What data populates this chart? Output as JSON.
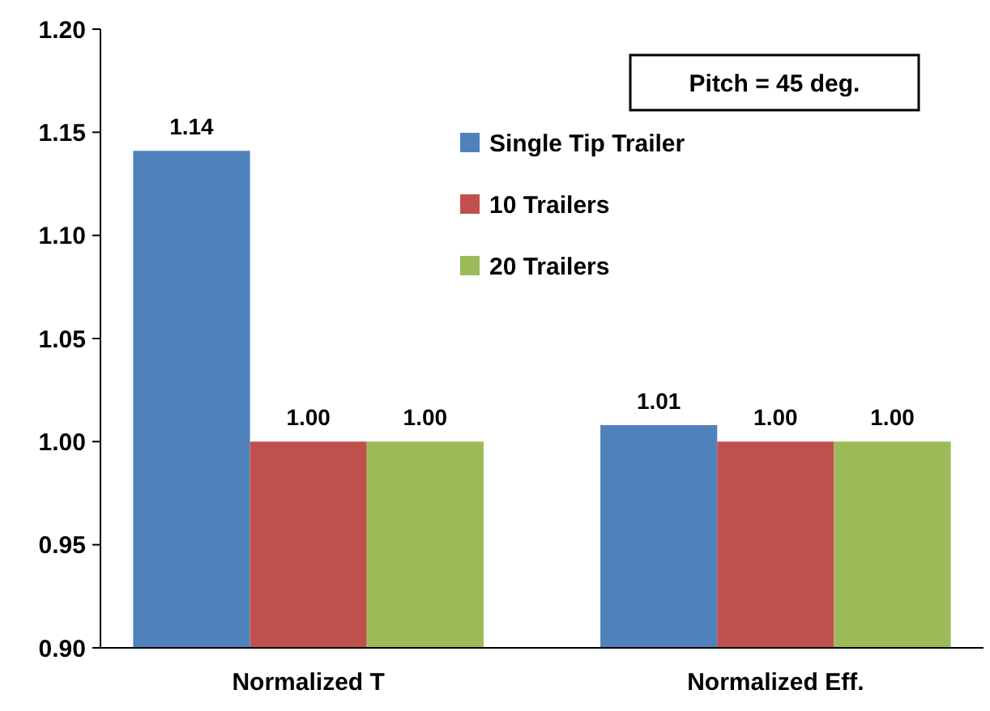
{
  "chart_data": {
    "type": "bar",
    "categories": [
      "Normalized T",
      "Normalized Eff."
    ],
    "series": [
      {
        "name": "Single Tip Trailer",
        "color": "#4f81bd",
        "values": [
          1.141,
          1.008
        ],
        "value_labels": [
          "1.14",
          "1.01"
        ]
      },
      {
        "name": "10 Trailers",
        "color": "#c0504d",
        "values": [
          1.0,
          1.0
        ],
        "value_labels": [
          "1.00",
          "1.00"
        ]
      },
      {
        "name": "20 Trailers",
        "color": "#9bbb59",
        "values": [
          1.0,
          1.0
        ],
        "value_labels": [
          "1.00",
          "1.00"
        ]
      }
    ],
    "ylim": [
      0.9,
      1.2
    ],
    "yticks": [
      {
        "value": 0.9,
        "label": "0.90"
      },
      {
        "value": 0.95,
        "label": "0.95"
      },
      {
        "value": 1.0,
        "label": "1.00"
      },
      {
        "value": 1.05,
        "label": "1.05"
      },
      {
        "value": 1.1,
        "label": "1.10"
      },
      {
        "value": 1.15,
        "label": "1.15"
      },
      {
        "value": 1.2,
        "label": "1.20"
      }
    ],
    "annotations": [
      "Pitch = 45 deg."
    ],
    "legend": "top right",
    "grid": false
  }
}
